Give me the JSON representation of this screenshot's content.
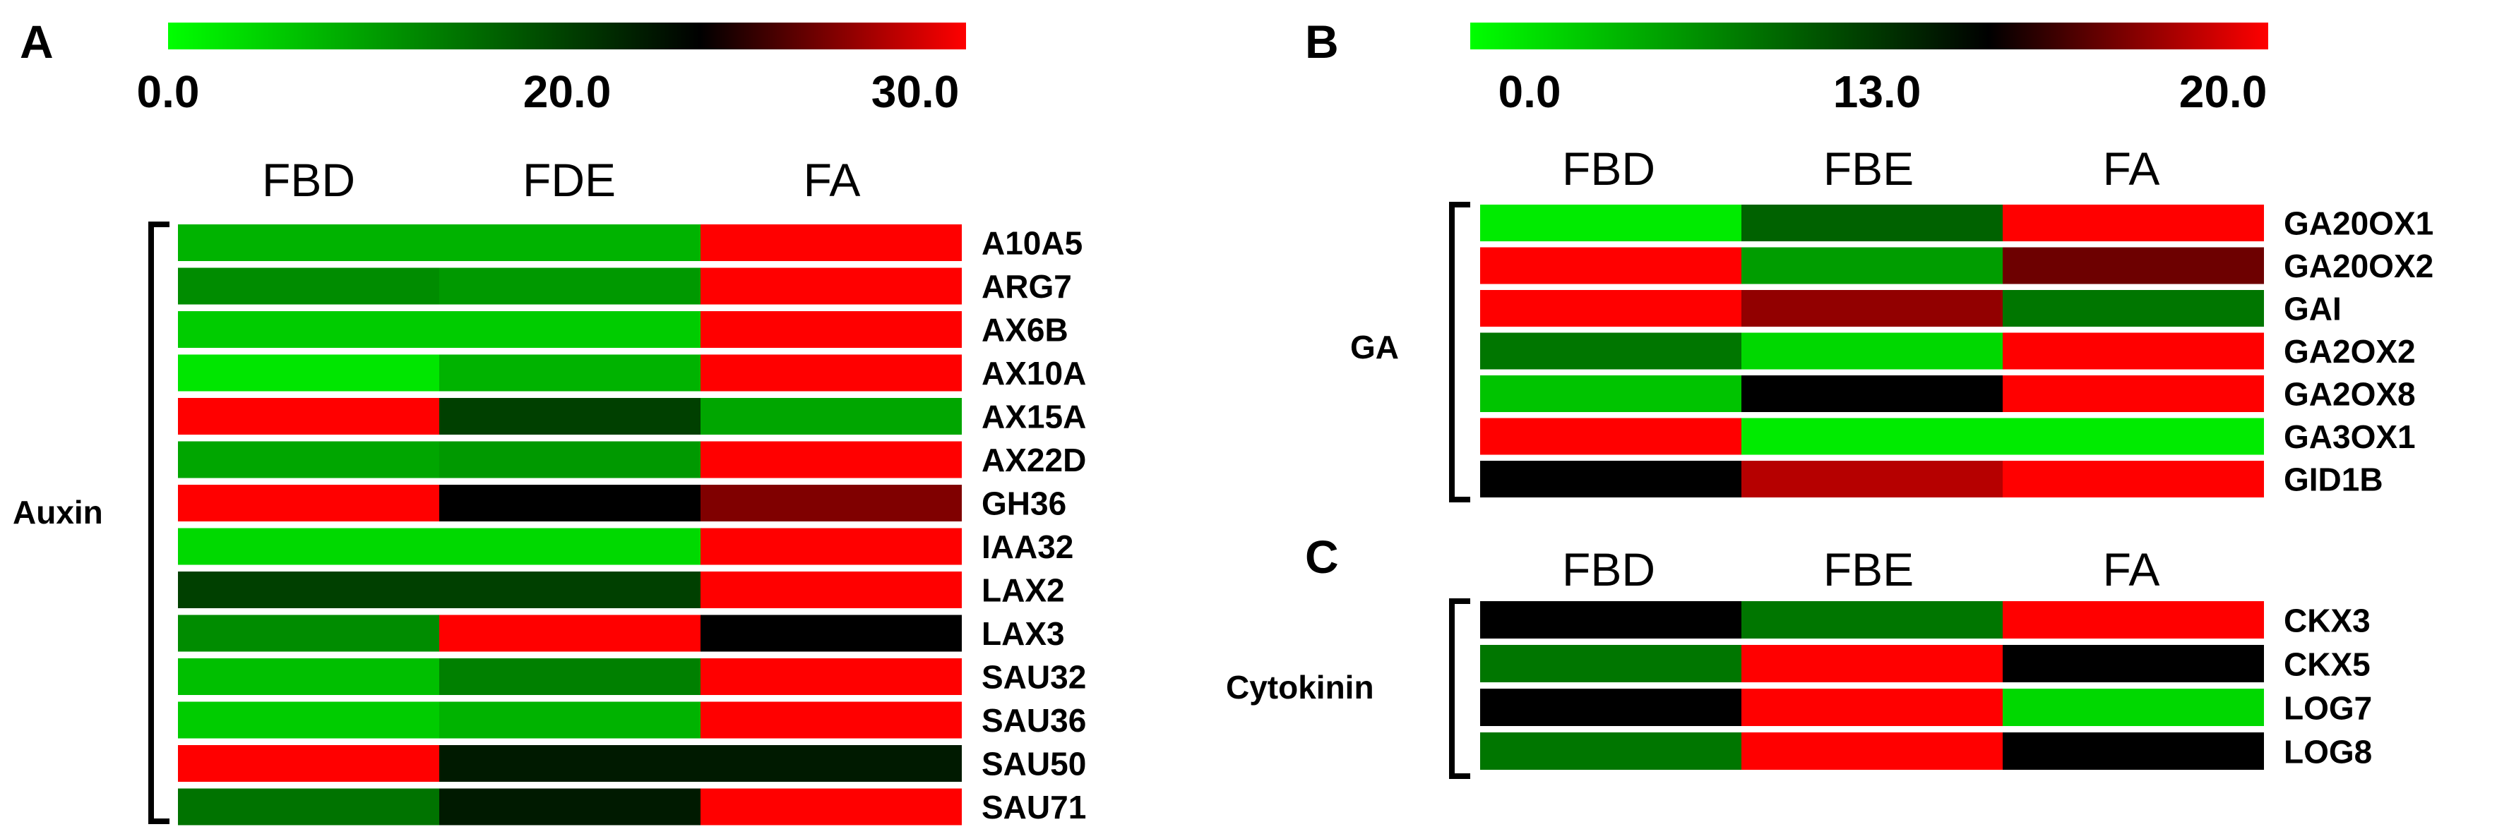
{
  "chart_data": [
    {
      "type": "heatmap",
      "panel": "A",
      "group": "Auxin",
      "scale": {
        "min": 0.0,
        "mid": 20.0,
        "max": 30.0,
        "ticks": [
          "0.0",
          "20.0",
          "30.0"
        ],
        "colors": {
          "low": "#00ff00",
          "mid": "#000000",
          "high": "#ff0000"
        }
      },
      "columns": [
        "FBD",
        "FDE",
        "FA"
      ],
      "rows": [
        {
          "gene": "A10A5",
          "values": [
            6,
            6,
            30
          ]
        },
        {
          "gene": "ARG7",
          "values": [
            9,
            8,
            30
          ]
        },
        {
          "gene": "AX6B",
          "values": [
            4,
            4,
            30
          ]
        },
        {
          "gene": "AX10A",
          "values": [
            2,
            6,
            30
          ]
        },
        {
          "gene": "AX15A",
          "values": [
            30,
            15,
            7
          ]
        },
        {
          "gene": "AX22D",
          "values": [
            7,
            8,
            30
          ]
        },
        {
          "gene": "GH36",
          "values": [
            30,
            20,
            25
          ]
        },
        {
          "gene": "IAA32",
          "values": [
            3,
            3,
            30
          ]
        },
        {
          "gene": "LAX2",
          "values": [
            15,
            15,
            30
          ]
        },
        {
          "gene": "LAX3",
          "values": [
            9,
            30,
            20
          ]
        },
        {
          "gene": "SAU32",
          "values": [
            5,
            10,
            30
          ]
        },
        {
          "gene": "SAU36",
          "values": [
            4,
            6,
            30
          ]
        },
        {
          "gene": "SAU50",
          "values": [
            30,
            18,
            18
          ]
        },
        {
          "gene": "SAU71",
          "values": [
            11,
            18,
            30
          ]
        }
      ]
    },
    {
      "type": "heatmap",
      "panel": "B",
      "group": "GA",
      "scale": {
        "min": 0.0,
        "mid": 13.0,
        "max": 20.0,
        "ticks": [
          "0.0",
          "13.0",
          "20.0"
        ],
        "colors": {
          "low": "#00ff00",
          "mid": "#000000",
          "high": "#ff0000"
        }
      },
      "columns": [
        "FBD",
        "FBE",
        "FA"
      ],
      "rows": [
        {
          "gene": "GA20OX1",
          "values": [
            1,
            8,
            20
          ]
        },
        {
          "gene": "GA20OX2",
          "values": [
            20,
            5,
            16
          ]
        },
        {
          "gene": "GAI",
          "values": [
            20,
            17,
            7
          ]
        },
        {
          "gene": "GA2OX2",
          "values": [
            7,
            2,
            20
          ]
        },
        {
          "gene": "GA2OX8",
          "values": [
            3,
            13,
            20
          ]
        },
        {
          "gene": "GA3OX1",
          "values": [
            20,
            1,
            1
          ]
        },
        {
          "gene": "GID1B",
          "values": [
            13,
            18,
            20
          ]
        }
      ]
    },
    {
      "type": "heatmap",
      "panel": "C",
      "group": "Cytokinin",
      "scale": {
        "min": 0.0,
        "mid": 13.0,
        "max": 20.0,
        "colors": {
          "low": "#00ff00",
          "mid": "#000000",
          "high": "#ff0000"
        }
      },
      "columns": [
        "FBD",
        "FBE",
        "FA"
      ],
      "rows": [
        {
          "gene": "CKX3",
          "values": [
            13,
            7,
            20
          ]
        },
        {
          "gene": "CKX5",
          "values": [
            7,
            20,
            13
          ]
        },
        {
          "gene": "LOG7",
          "values": [
            13,
            20,
            2
          ]
        },
        {
          "gene": "LOG8",
          "values": [
            7,
            20,
            13
          ]
        }
      ]
    }
  ]
}
